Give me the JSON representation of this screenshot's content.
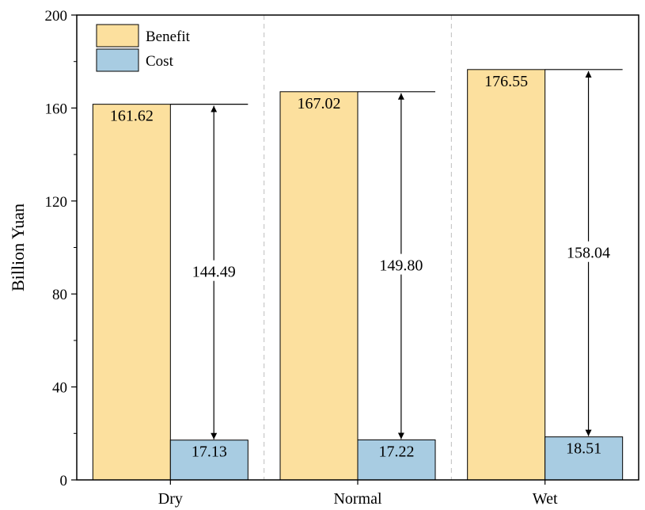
{
  "chart_data": {
    "type": "bar",
    "categories": [
      "Dry",
      "Normal",
      "Wet"
    ],
    "series": [
      {
        "name": "Benefit",
        "values": [
          161.62,
          167.02,
          176.55
        ],
        "color": "#fce09e"
      },
      {
        "name": "Cost",
        "values": [
          17.13,
          17.22,
          18.51
        ],
        "color": "#a8cce2"
      }
    ],
    "value_labels": {
      "benefit": [
        "161.62",
        "167.02",
        "176.55"
      ],
      "cost": [
        "17.13",
        "17.22",
        "18.51"
      ]
    },
    "differences": [
      144.49,
      149.8,
      158.04
    ],
    "difference_labels": [
      "144.49",
      "149.80",
      "158.04"
    ],
    "ylabel": "Billion Yuan",
    "xlabel": "",
    "ylim": [
      0,
      200
    ],
    "yticks": [
      0,
      40,
      80,
      120,
      160,
      200
    ],
    "ytick_labels": [
      "0",
      "40",
      "80",
      "120",
      "160",
      "200"
    ],
    "grid": "vertical dashed separators between groups",
    "legend_position": "top-left"
  }
}
